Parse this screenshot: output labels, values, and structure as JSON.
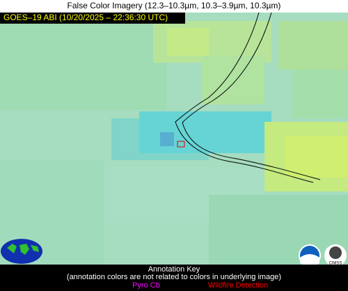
{
  "header": {
    "title": "False Color Imagery (12.3–10.3µm, 10.3–3.9µm, 10.3µm)",
    "subtitle": "GOES–19 ABI (10/20/2025 – 22:36:30 UTC)"
  },
  "key": {
    "title": "Annotation Key",
    "note": "(annotation colors are not related to colors in underlying image)",
    "items": [
      "Pyro Cb",
      "Wildfire Detection"
    ]
  },
  "logos": {
    "cimss": "CIMSS"
  }
}
